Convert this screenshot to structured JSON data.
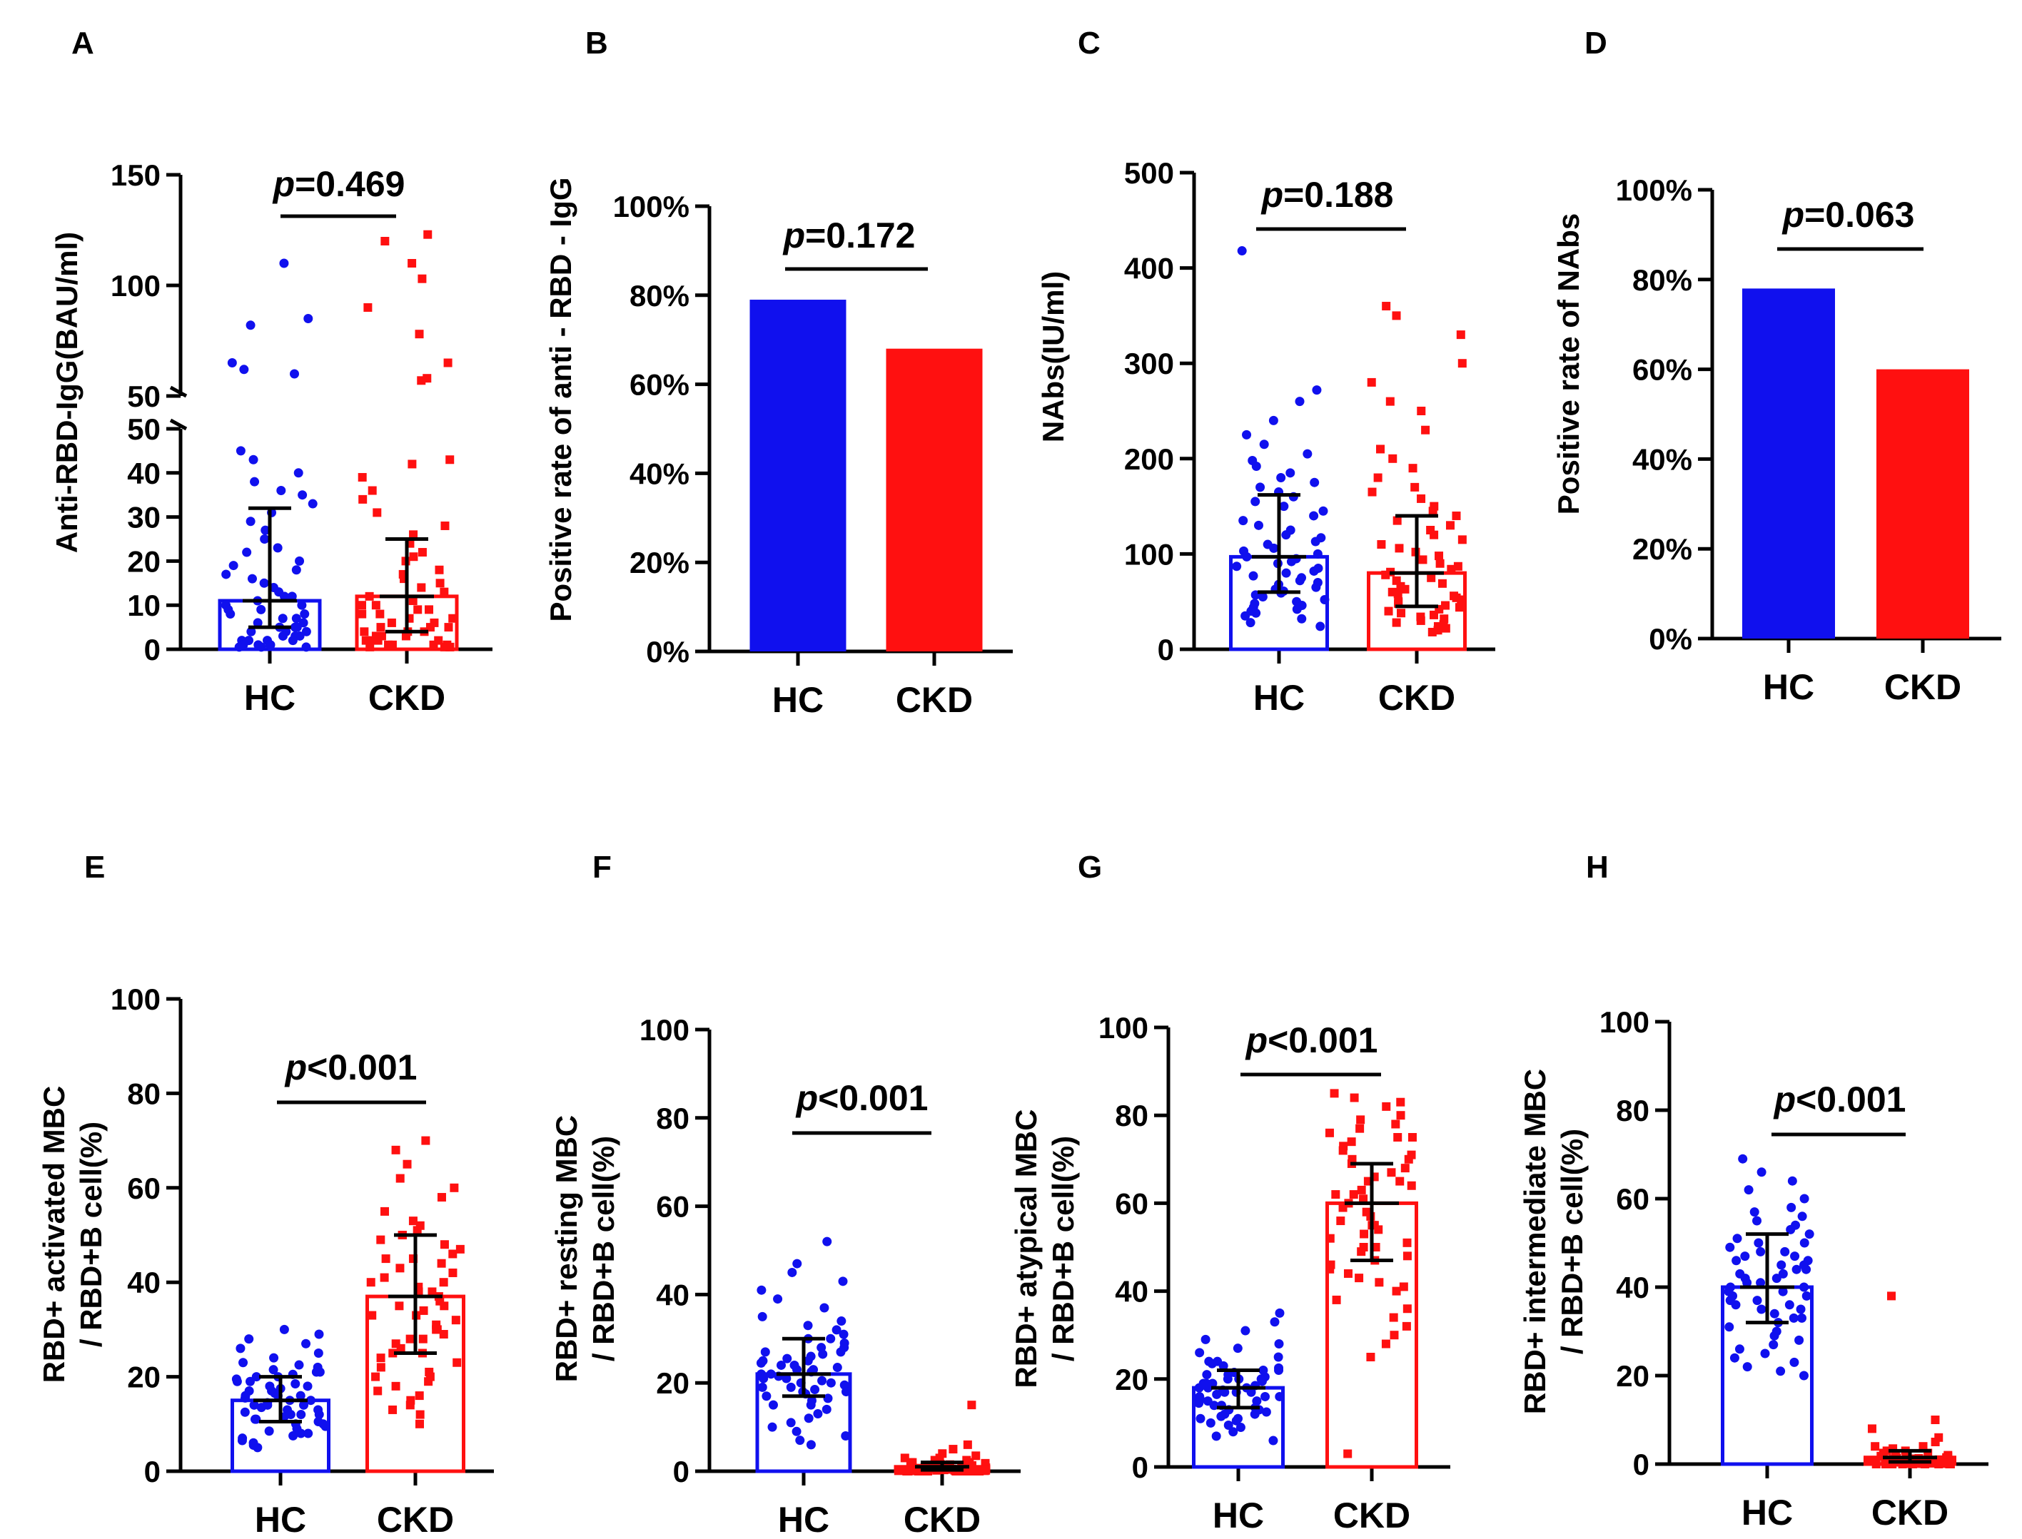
{
  "colors": {
    "hc": "#1010ee",
    "ckd": "#ff1010",
    "axis": "#000000"
  },
  "chart_data": [
    {
      "panel": "A",
      "type": "scatter",
      "ylabel": "Anti-RBD-IgG(BAU/ml)",
      "categories": [
        "HC",
        "CKD"
      ],
      "y_ticks_lower": [
        "0",
        "10",
        "20",
        "30",
        "40",
        "50"
      ],
      "y_ticks_upper": [
        "50",
        "100",
        "150"
      ],
      "ylim_lower": [
        0,
        50
      ],
      "ylim_upper": [
        50,
        150
      ],
      "p_label": "p",
      "p_text": "=0.469",
      "summary": [
        {
          "name": "HC",
          "median": 11,
          "q1": 5,
          "q3": 32
        },
        {
          "name": "CKD",
          "median": 12,
          "q1": 4,
          "q3": 25
        }
      ],
      "series": [
        {
          "name": "HC",
          "values": [
            110,
            85,
            82,
            65,
            62,
            60,
            45,
            43,
            40,
            38,
            36,
            35,
            33,
            31,
            29,
            27,
            25,
            23,
            22,
            20,
            19,
            18,
            17,
            16,
            15,
            14,
            13,
            12,
            12,
            11,
            10,
            10,
            9,
            9,
            8,
            8,
            7,
            7,
            6,
            6,
            5,
            5,
            5,
            4,
            4,
            4,
            3,
            3,
            3,
            2,
            2,
            2,
            2,
            1,
            1,
            1,
            1,
            0.5,
            0.5,
            0.5
          ]
        },
        {
          "name": "CKD",
          "values": [
            123,
            120,
            110,
            103,
            90,
            78,
            65,
            58,
            57,
            43,
            42,
            39,
            36,
            34,
            31,
            28,
            26,
            24,
            22,
            21,
            20,
            18,
            17,
            16,
            15,
            14,
            13,
            12,
            11,
            10,
            10,
            9,
            9,
            8,
            8,
            7,
            7,
            6,
            6,
            5,
            5,
            5,
            4,
            4,
            4,
            3,
            3,
            3,
            2,
            2,
            2,
            2,
            1,
            1,
            1,
            1,
            0.5,
            0.5,
            0.5,
            0.5
          ]
        }
      ]
    },
    {
      "panel": "B",
      "type": "bar",
      "ylabel": "Positive rate of anti - RBD - IgG",
      "categories": [
        "HC",
        "CKD"
      ],
      "values": [
        79,
        68
      ],
      "ylim": [
        0,
        100
      ],
      "y_ticks": [
        "0%",
        "20%",
        "40%",
        "60%",
        "80%",
        "100%"
      ],
      "p_label": "p",
      "p_text": "=0.172"
    },
    {
      "panel": "C",
      "type": "scatter",
      "ylabel": "NAbs(IU/ml)",
      "categories": [
        "HC",
        "CKD"
      ],
      "ylim": [
        0,
        500
      ],
      "y_ticks": [
        "0",
        "100",
        "200",
        "300",
        "400",
        "500"
      ],
      "p_label": "p",
      "p_text": "=0.188",
      "summary": [
        {
          "name": "HC",
          "median": 97,
          "q1": 60,
          "q3": 162
        },
        {
          "name": "CKD",
          "median": 80,
          "q1": 45,
          "q3": 140
        }
      ],
      "series": [
        {
          "name": "HC",
          "values": [
            418,
            272,
            260,
            240,
            225,
            215,
            205,
            198,
            192,
            185,
            180,
            175,
            170,
            165,
            160,
            155,
            150,
            145,
            140,
            135,
            130,
            125,
            120,
            117,
            113,
            110,
            106,
            103,
            100,
            97,
            95,
            92,
            90,
            87,
            85,
            82,
            80,
            77,
            75,
            72,
            70,
            68,
            65,
            63,
            61,
            59,
            57,
            55,
            52,
            50,
            48,
            46,
            44,
            42,
            40,
            38,
            35,
            32,
            28,
            24
          ]
        },
        {
          "name": "CKD",
          "values": [
            360,
            350,
            330,
            300,
            280,
            260,
            250,
            230,
            210,
            200,
            190,
            180,
            170,
            165,
            158,
            150,
            145,
            140,
            135,
            130,
            125,
            120,
            115,
            110,
            106,
            102,
            98,
            94,
            90,
            87,
            84,
            81,
            78,
            75,
            72,
            69,
            66,
            63,
            60,
            58,
            56,
            54,
            52,
            50,
            48,
            46,
            44,
            42,
            40,
            38,
            36,
            34,
            32,
            30,
            28,
            26,
            24,
            22,
            20,
            18
          ]
        }
      ]
    },
    {
      "panel": "D",
      "type": "bar",
      "ylabel": "Positive rate of NAbs",
      "categories": [
        "HC",
        "CKD"
      ],
      "values": [
        78,
        60
      ],
      "ylim": [
        0,
        100
      ],
      "y_ticks": [
        "0%",
        "20%",
        "40%",
        "60%",
        "80%",
        "100%"
      ],
      "p_label": "p",
      "p_text": "=0.063"
    },
    {
      "panel": "E",
      "type": "scatter",
      "ylabel_lines": [
        "RBD+ activated MBC",
        "/ RBD+B cell(%)"
      ],
      "categories": [
        "HC",
        "CKD"
      ],
      "ylim": [
        0,
        100
      ],
      "y_ticks": [
        "0",
        "20",
        "40",
        "60",
        "80",
        "100"
      ],
      "p_label": "p",
      "p_text": "<0.001",
      "summary": [
        {
          "name": "HC",
          "median": 15,
          "q1": 10.5,
          "q3": 20
        },
        {
          "name": "CKD",
          "median": 37,
          "q1": 25,
          "q3": 50
        }
      ],
      "series": [
        {
          "name": "HC",
          "values": [
            30,
            29,
            28,
            27,
            26,
            25,
            24,
            23,
            22.5,
            22,
            21.5,
            21,
            20.5,
            20,
            19.5,
            19,
            18.5,
            18,
            17.5,
            17,
            16.5,
            16,
            15.5,
            15,
            14.5,
            14,
            13.5,
            13,
            12.5,
            12,
            11.5,
            11,
            10.5,
            10,
            9.5,
            9,
            8.5,
            8,
            7.5,
            7,
            6.5,
            6,
            5.5,
            5,
            18,
            17,
            16,
            15,
            14,
            13,
            12,
            11,
            20,
            21,
            19,
            16,
            14,
            12,
            10,
            8
          ]
        },
        {
          "name": "CKD",
          "values": [
            70,
            68,
            65,
            62,
            60,
            58,
            55,
            53,
            52,
            51,
            50,
            49,
            48,
            47,
            46,
            45,
            44,
            43,
            42,
            41,
            40,
            39,
            38,
            37,
            36,
            35,
            34,
            33,
            32,
            31,
            30,
            29,
            28,
            27,
            26,
            25,
            24,
            23,
            22,
            21,
            20,
            19,
            18,
            17,
            16,
            15,
            14,
            13,
            12,
            10,
            45,
            40,
            35,
            30,
            25,
            20,
            50,
            38,
            33,
            28
          ]
        }
      ]
    },
    {
      "panel": "F",
      "type": "scatter",
      "ylabel_lines": [
        "RBD+ resting MBC",
        "/ RBD+B cell(%)"
      ],
      "categories": [
        "HC",
        "CKD"
      ],
      "ylim": [
        0,
        100
      ],
      "y_ticks": [
        "0",
        "20",
        "40",
        "60",
        "80",
        "100"
      ],
      "p_label": "p",
      "p_text": "<0.001",
      "summary": [
        {
          "name": "HC",
          "median": 22,
          "q1": 17,
          "q3": 30
        },
        {
          "name": "CKD",
          "median": 1,
          "q1": 0.3,
          "q3": 2
        }
      ],
      "series": [
        {
          "name": "HC",
          "values": [
            52,
            47,
            45,
            43,
            41,
            39,
            37,
            35,
            34,
            33,
            32,
            31,
            30,
            29,
            28,
            27,
            26.5,
            26,
            25.5,
            25,
            24.5,
            24,
            23.5,
            23,
            22.5,
            22,
            21.5,
            21,
            20.5,
            20,
            19.5,
            19,
            18.5,
            18,
            17.5,
            17,
            16.5,
            16,
            15,
            14,
            13,
            12,
            11,
            10,
            9,
            8,
            7,
            6,
            25,
            22,
            20,
            28,
            24,
            18,
            15,
            30,
            27,
            21,
            19,
            23
          ]
        },
        {
          "name": "CKD",
          "values": [
            15,
            6,
            5,
            4,
            3.5,
            3,
            3,
            2.5,
            2.5,
            2,
            2,
            2,
            1.8,
            1.6,
            1.5,
            1.4,
            1.3,
            1.2,
            1.1,
            1,
            1,
            1,
            0.9,
            0.8,
            0.8,
            0.7,
            0.7,
            0.6,
            0.6,
            0.5,
            0.5,
            0.5,
            0.4,
            0.4,
            0.4,
            0.3,
            0.3,
            0.3,
            0.3,
            0.2,
            0.2,
            0.2,
            0.2,
            0.1,
            0.1,
            0.1,
            0.1,
            0.1,
            0,
            0,
            0,
            0,
            0,
            0,
            0,
            0,
            0,
            0,
            0,
            0
          ]
        }
      ]
    },
    {
      "panel": "G",
      "type": "scatter",
      "ylabel_lines": [
        "RBD+ atypical MBC",
        "/ RBD+B cell(%)"
      ],
      "categories": [
        "HC",
        "CKD"
      ],
      "ylim": [
        0,
        100
      ],
      "y_ticks": [
        "0",
        "20",
        "40",
        "60",
        "80",
        "100"
      ],
      "p_label": "p",
      "p_text": "<0.001",
      "summary": [
        {
          "name": "HC",
          "median": 18,
          "q1": 13.5,
          "q3": 22
        },
        {
          "name": "CKD",
          "median": 60,
          "q1": 47,
          "q3": 69
        }
      ],
      "series": [
        {
          "name": "HC",
          "values": [
            35,
            33,
            31,
            29,
            28,
            27,
            26,
            25,
            24,
            23.5,
            23,
            22.5,
            22,
            21.5,
            21,
            20.5,
            20,
            19.5,
            19,
            18.5,
            18,
            17.5,
            17,
            16.5,
            16,
            15.5,
            15,
            14.5,
            14,
            13.5,
            13,
            12.5,
            12,
            11.5,
            11,
            10.5,
            10,
            9.5,
            9,
            8,
            7,
            6,
            20,
            18,
            16,
            22,
            19,
            17,
            15,
            21,
            14,
            12,
            24,
            19,
            18,
            16,
            20,
            17,
            13,
            11
          ]
        },
        {
          "name": "CKD",
          "values": [
            85,
            84,
            83,
            82,
            80,
            79,
            78,
            77,
            76,
            75,
            74,
            73,
            72,
            71,
            70,
            69,
            68,
            67,
            66,
            65,
            64,
            63,
            62,
            61,
            60,
            59,
            58,
            57,
            56,
            55,
            54,
            53,
            52,
            51,
            50,
            49,
            48,
            47,
            46,
            45,
            44,
            43,
            42,
            41,
            40,
            38,
            36,
            34,
            32,
            30,
            28,
            25,
            65,
            70,
            60,
            55,
            75,
            50,
            62,
            3
          ]
        }
      ]
    },
    {
      "panel": "H",
      "type": "scatter",
      "ylabel_lines": [
        "RBD+ intermediate MBC",
        "/ RBD+B cell(%)"
      ],
      "categories": [
        "HC",
        "CKD"
      ],
      "ylim": [
        0,
        100
      ],
      "y_ticks": [
        "0",
        "20",
        "40",
        "60",
        "80",
        "100"
      ],
      "p_label": "p",
      "p_text": "<0.001",
      "summary": [
        {
          "name": "HC",
          "median": 40,
          "q1": 32,
          "q3": 52
        },
        {
          "name": "CKD",
          "median": 1.5,
          "q1": 0.5,
          "q3": 3
        }
      ],
      "series": [
        {
          "name": "HC",
          "values": [
            69,
            66,
            64,
            62,
            60,
            58,
            57,
            56,
            55,
            54,
            53,
            52,
            51,
            50,
            49,
            48,
            47,
            46,
            45,
            44,
            43,
            42,
            41,
            40,
            39,
            38,
            37,
            36,
            35,
            34,
            33,
            32,
            31,
            30,
            29,
            28,
            27,
            26,
            25,
            24,
            23,
            22,
            21,
            20,
            45,
            42,
            40,
            38,
            50,
            47,
            44,
            35,
            41,
            39,
            36,
            48,
            43,
            33,
            46,
            37
          ]
        },
        {
          "name": "CKD",
          "values": [
            38,
            10,
            8,
            6,
            5,
            4,
            4,
            3.5,
            3,
            3,
            2.5,
            2.5,
            2,
            2,
            2,
            1.8,
            1.6,
            1.5,
            1.4,
            1.3,
            1.2,
            1.1,
            1,
            1,
            1,
            0.9,
            0.8,
            0.8,
            0.7,
            0.7,
            0.6,
            0.6,
            0.5,
            0.5,
            0.5,
            0.4,
            0.4,
            0.4,
            0.3,
            0.3,
            0.3,
            0.3,
            0.2,
            0.2,
            0.2,
            0.2,
            0.1,
            0.1,
            0.1,
            0.1,
            0,
            0,
            0,
            0,
            0,
            0,
            0,
            0,
            0,
            0
          ]
        }
      ]
    }
  ]
}
